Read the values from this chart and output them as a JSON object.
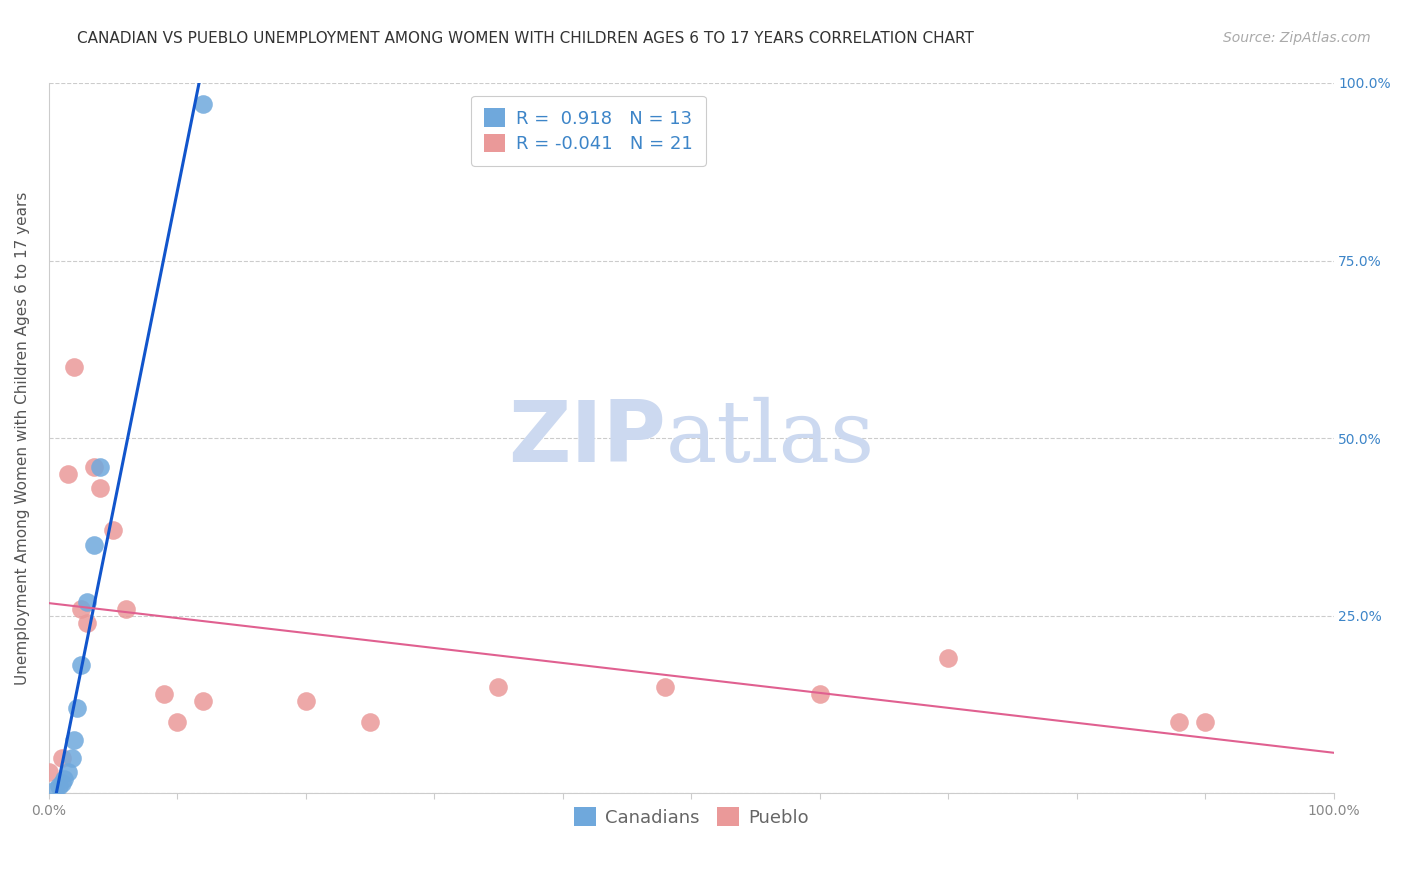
{
  "title": "CANADIAN VS PUEBLO UNEMPLOYMENT AMONG WOMEN WITH CHILDREN AGES 6 TO 17 YEARS CORRELATION CHART",
  "source": "Source: ZipAtlas.com",
  "ylabel": "Unemployment Among Women with Children Ages 6 to 17 years",
  "xlim": [
    0.0,
    1.0
  ],
  "ylim": [
    0.0,
    1.0
  ],
  "xticks": [
    0.0,
    0.1,
    0.2,
    0.3,
    0.4,
    0.5,
    0.6,
    0.7,
    0.8,
    0.9,
    1.0
  ],
  "xticklabels": [
    "0.0%",
    "",
    "",
    "",
    "",
    "",
    "",
    "",
    "",
    "",
    "100.0%"
  ],
  "yticks": [
    0.0,
    0.25,
    0.5,
    0.75,
    1.0
  ],
  "yticklabels": [
    "",
    "25.0%",
    "50.0%",
    "75.0%",
    "100.0%"
  ],
  "canadians_x": [
    0.005,
    0.008,
    0.01,
    0.012,
    0.015,
    0.018,
    0.02,
    0.022,
    0.025,
    0.03,
    0.035,
    0.04,
    0.12
  ],
  "canadians_y": [
    0.005,
    0.01,
    0.015,
    0.02,
    0.03,
    0.05,
    0.075,
    0.12,
    0.18,
    0.27,
    0.35,
    0.46,
    0.97
  ],
  "pueblo_x": [
    0.0,
    0.01,
    0.015,
    0.02,
    0.025,
    0.03,
    0.035,
    0.04,
    0.05,
    0.06,
    0.09,
    0.1,
    0.12,
    0.2,
    0.25,
    0.35,
    0.48,
    0.6,
    0.7,
    0.88,
    0.9
  ],
  "pueblo_y": [
    0.03,
    0.05,
    0.45,
    0.6,
    0.26,
    0.24,
    0.46,
    0.43,
    0.37,
    0.26,
    0.14,
    0.1,
    0.13,
    0.13,
    0.1,
    0.15,
    0.15,
    0.14,
    0.19,
    0.1,
    0.1
  ],
  "canadian_color": "#6fa8dc",
  "pueblo_color": "#ea9999",
  "canadian_line_color": "#1155cc",
  "pueblo_line_color": "#e06090",
  "canadian_R": "0.918",
  "canadian_N": "13",
  "pueblo_R": "-0.041",
  "pueblo_N": "21",
  "watermark_zip": "ZIP",
  "watermark_atlas": "atlas",
  "watermark_color": "#ccd9f0",
  "legend_label_canadian": "Canadians",
  "legend_label_pueblo": "Pueblo",
  "title_fontsize": 11,
  "axis_label_fontsize": 11,
  "tick_fontsize": 10,
  "legend_fontsize": 13,
  "source_fontsize": 10,
  "right_ytick_color": "#3d85c8",
  "r_value_color": "#3d85c8",
  "n_value_color": "#3d85c8",
  "background_color": "#ffffff"
}
